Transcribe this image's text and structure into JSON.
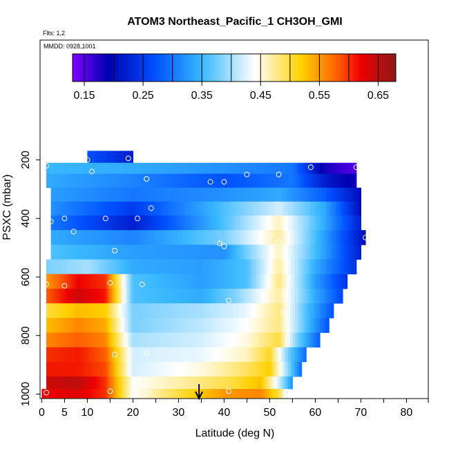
{
  "chart_data": {
    "type": "heatmap",
    "title": "ATOM3 Northeast_Pacific_1 CH3OH_GMI",
    "flights_label": "Flts: 1,2",
    "date_label": "MMDD: 0928,1001",
    "xlabel": "Latitude (deg N)",
    "ylabel": "PSXC (mbar)",
    "xlim": [
      0,
      85
    ],
    "ylim": [
      1000,
      80
    ],
    "x_ticks": [
      0,
      5,
      10,
      20,
      30,
      40,
      50,
      60,
      70,
      80
    ],
    "x_minor_ticks": [
      15,
      25,
      35,
      45,
      55,
      65,
      75,
      85
    ],
    "y_ticks": [
      200,
      400,
      600,
      800,
      1000
    ],
    "colorbar": {
      "min": 0.13,
      "max": 0.68,
      "ticks": [
        0.15,
        0.25,
        0.35,
        0.45,
        0.55,
        0.65
      ],
      "tick_labels": [
        "0.15",
        "0.25",
        "0.35",
        "0.45",
        "0.55",
        "0.65"
      ],
      "bins": [
        0.13,
        0.15,
        0.2,
        0.25,
        0.3,
        0.35,
        0.4,
        0.45,
        0.5,
        0.55,
        0.6,
        0.65,
        0.68
      ],
      "colors": [
        "#8000ff",
        "#0000b0",
        "#0050ff",
        "#38b8ff",
        "#ffffff",
        "#ffd000",
        "#ff6000",
        "#ee0000",
        "#8c1a1a"
      ],
      "color_stops": [
        0.13,
        0.19,
        0.27,
        0.35,
        0.44,
        0.52,
        0.58,
        0.62,
        0.68
      ]
    },
    "layers": [
      {
        "p": 195,
        "lat0": 10,
        "lat1": 20,
        "c_lat": [
          10,
          20
        ],
        "c_val": [
          0.27,
          0.22
        ]
      },
      {
        "p": 225,
        "lat0": 1,
        "lat1": 69,
        "c_lat": [
          1,
          20,
          40,
          55,
          62,
          69
        ],
        "c_val": [
          0.35,
          0.34,
          0.32,
          0.3,
          0.18,
          0.15
        ]
      },
      {
        "p": 270,
        "lat0": 1,
        "lat1": 69,
        "c_lat": [
          1,
          20,
          40,
          55,
          62,
          69
        ],
        "c_val": [
          0.34,
          0.31,
          0.27,
          0.3,
          0.22,
          0.18
        ]
      },
      {
        "p": 320,
        "lat0": 2,
        "lat1": 70,
        "c_lat": [
          2,
          20,
          40,
          52,
          62,
          70
        ],
        "c_val": [
          0.33,
          0.3,
          0.32,
          0.34,
          0.28,
          0.2
        ]
      },
      {
        "p": 365,
        "lat0": 2,
        "lat1": 70,
        "c_lat": [
          2,
          20,
          40,
          52,
          62,
          70
        ],
        "c_val": [
          0.32,
          0.25,
          0.36,
          0.42,
          0.34,
          0.2
        ]
      },
      {
        "p": 415,
        "lat0": 2,
        "lat1": 70,
        "c_lat": [
          2,
          20,
          40,
          52,
          62,
          70
        ],
        "c_val": [
          0.3,
          0.22,
          0.36,
          0.46,
          0.34,
          0.22
        ]
      },
      {
        "p": 465,
        "lat0": 2,
        "lat1": 71,
        "c_lat": [
          2,
          20,
          40,
          52,
          62,
          71
        ],
        "c_val": [
          0.34,
          0.31,
          0.38,
          0.47,
          0.33,
          0.2
        ]
      },
      {
        "p": 515,
        "lat0": 2,
        "lat1": 70,
        "c_lat": [
          2,
          20,
          40,
          52,
          62,
          70
        ],
        "c_val": [
          0.36,
          0.33,
          0.32,
          0.46,
          0.33,
          0.22
        ]
      },
      {
        "p": 565,
        "lat0": 1,
        "lat1": 69,
        "c_lat": [
          1,
          10,
          20,
          35,
          45,
          52,
          60,
          69
        ],
        "c_val": [
          0.38,
          0.4,
          0.34,
          0.33,
          0.36,
          0.47,
          0.34,
          0.24
        ]
      },
      {
        "p": 615,
        "lat0": 1,
        "lat1": 67,
        "c_lat": [
          1,
          8,
          14,
          20,
          35,
          45,
          52,
          60,
          67
        ],
        "c_val": [
          0.55,
          0.62,
          0.6,
          0.36,
          0.33,
          0.36,
          0.48,
          0.33,
          0.24
        ]
      },
      {
        "p": 665,
        "lat0": 1,
        "lat1": 66,
        "c_lat": [
          1,
          8,
          14,
          20,
          35,
          42,
          52,
          60,
          66
        ],
        "c_val": [
          0.58,
          0.64,
          0.61,
          0.36,
          0.34,
          0.38,
          0.47,
          0.34,
          0.26
        ]
      },
      {
        "p": 715,
        "lat0": 1,
        "lat1": 64,
        "c_lat": [
          1,
          8,
          14,
          20,
          35,
          45,
          52,
          58,
          64
        ],
        "c_val": [
          0.5,
          0.53,
          0.52,
          0.38,
          0.4,
          0.43,
          0.48,
          0.36,
          0.27
        ]
      },
      {
        "p": 765,
        "lat0": 1,
        "lat1": 63,
        "c_lat": [
          1,
          8,
          14,
          20,
          35,
          45,
          52,
          58,
          63
        ],
        "c_val": [
          0.53,
          0.56,
          0.54,
          0.38,
          0.41,
          0.44,
          0.48,
          0.36,
          0.27
        ]
      },
      {
        "p": 815,
        "lat0": 1,
        "lat1": 61,
        "c_lat": [
          1,
          8,
          14,
          20,
          35,
          45,
          52,
          56,
          61
        ],
        "c_val": [
          0.56,
          0.58,
          0.56,
          0.4,
          0.42,
          0.45,
          0.5,
          0.38,
          0.28
        ]
      },
      {
        "p": 865,
        "lat0": 1,
        "lat1": 58,
        "c_lat": [
          1,
          8,
          14,
          20,
          35,
          45,
          50,
          54,
          58
        ],
        "c_val": [
          0.6,
          0.61,
          0.58,
          0.42,
          0.43,
          0.46,
          0.51,
          0.38,
          0.29
        ]
      },
      {
        "p": 915,
        "lat0": 1,
        "lat1": 57,
        "c_lat": [
          1,
          8,
          14,
          20,
          35,
          45,
          50,
          54,
          57
        ],
        "c_val": [
          0.61,
          0.61,
          0.59,
          0.42,
          0.45,
          0.49,
          0.52,
          0.39,
          0.29
        ]
      },
      {
        "p": 965,
        "lat0": 1,
        "lat1": 55,
        "c_lat": [
          1,
          8,
          14,
          20,
          35,
          42,
          48,
          52,
          55
        ],
        "c_val": [
          0.64,
          0.65,
          0.6,
          0.44,
          0.48,
          0.5,
          0.53,
          0.42,
          0.32
        ]
      },
      {
        "p": 1000,
        "lat0": 0,
        "lat1": 54,
        "c_lat": [
          0,
          8,
          14,
          20,
          30,
          40,
          48,
          52,
          54
        ],
        "c_val": [
          0.62,
          0.63,
          0.6,
          0.44,
          0.5,
          0.55,
          0.56,
          0.5,
          0.42
        ]
      }
    ],
    "observations": [
      {
        "lat": 10,
        "p": 200
      },
      {
        "lat": 19,
        "p": 195
      },
      {
        "lat": 1,
        "p": 220
      },
      {
        "lat": 11,
        "p": 240
      },
      {
        "lat": 23,
        "p": 265
      },
      {
        "lat": 37,
        "p": 275
      },
      {
        "lat": 40,
        "p": 275
      },
      {
        "lat": 45,
        "p": 250
      },
      {
        "lat": 52,
        "p": 250
      },
      {
        "lat": 59,
        "p": 225
      },
      {
        "lat": 69,
        "p": 225
      },
      {
        "lat": 24,
        "p": 365
      },
      {
        "lat": 2,
        "p": 410
      },
      {
        "lat": 5,
        "p": 400
      },
      {
        "lat": 14,
        "p": 400
      },
      {
        "lat": 21,
        "p": 400
      },
      {
        "lat": 7,
        "p": 445
      },
      {
        "lat": 71,
        "p": 465
      },
      {
        "lat": 39,
        "p": 485
      },
      {
        "lat": 40,
        "p": 495
      },
      {
        "lat": 52,
        "p": 480
      },
      {
        "lat": 16,
        "p": 510
      },
      {
        "lat": 1,
        "p": 625
      },
      {
        "lat": 5,
        "p": 630
      },
      {
        "lat": 15,
        "p": 620
      },
      {
        "lat": 22,
        "p": 625
      },
      {
        "lat": 41,
        "p": 680
      },
      {
        "lat": 53,
        "p": 720
      },
      {
        "lat": 16,
        "p": 865
      },
      {
        "lat": 23,
        "p": 860
      },
      {
        "lat": 1,
        "p": 995
      },
      {
        "lat": 15,
        "p": 990
      },
      {
        "lat": 23,
        "p": 995
      },
      {
        "lat": 41,
        "p": 990
      },
      {
        "lat": 54,
        "p": 995
      }
    ],
    "marker": {
      "type": "arrow",
      "lat": 34.5
    }
  }
}
